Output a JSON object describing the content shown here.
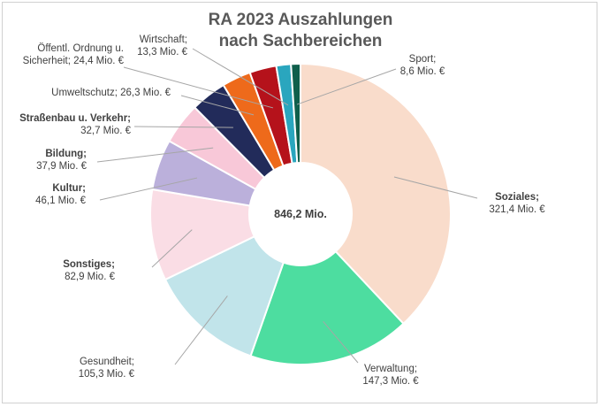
{
  "chart_data": {
    "type": "pie",
    "title_lines": [
      "RA 2023 Auszahlungen",
      "nach Sachbereichen"
    ],
    "center_label": "846,2 Mio.",
    "unit": "Mio. €",
    "series": [
      {
        "name": "Soziales",
        "value": 321.4,
        "value_label": "321,4 Mio. €",
        "color": "#F9DCCB",
        "bold": true
      },
      {
        "name": "Verwaltung",
        "value": 147.3,
        "value_label": "147,3 Mio. €",
        "color": "#4DDDA0",
        "bold": false
      },
      {
        "name": "Gesundheit",
        "value": 105.3,
        "value_label": "105,3 Mio. €",
        "color": "#C1E4EA",
        "bold": false
      },
      {
        "name": "Sonstiges",
        "value": 82.9,
        "value_label": "82,9 Mio. €",
        "color": "#FADDE5",
        "bold": true
      },
      {
        "name": "Kultur",
        "value": 46.1,
        "value_label": "46,1 Mio. €",
        "color": "#BBB0DB",
        "bold": true
      },
      {
        "name": "Bildung",
        "value": 37.9,
        "value_label": "37,9 Mio. €",
        "color": "#F8C8D8",
        "bold": true
      },
      {
        "name": "Straßenbau u. Verkehr",
        "value": 32.7,
        "value_label": "32,7 Mio. €",
        "color": "#222B5A",
        "bold": true
      },
      {
        "name": "Umweltschutz",
        "value": 26.3,
        "value_label": "26,3 Mio. €",
        "color": "#EE6A1B",
        "bold": false
      },
      {
        "name": "Öffentl. Ordnung u. Sicherheit",
        "value": 24.4,
        "value_label": "24,4 Mio. €",
        "color": "#B5121B",
        "bold": false
      },
      {
        "name": "Wirtschaft",
        "value": 13.3,
        "value_label": "13,3 Mio. €",
        "color": "#2AA6BE",
        "bold": false
      },
      {
        "name": "Sport",
        "value": 8.6,
        "value_label": "8,6 Mio. €",
        "color": "#0F5F4B",
        "bold": false
      }
    ]
  }
}
